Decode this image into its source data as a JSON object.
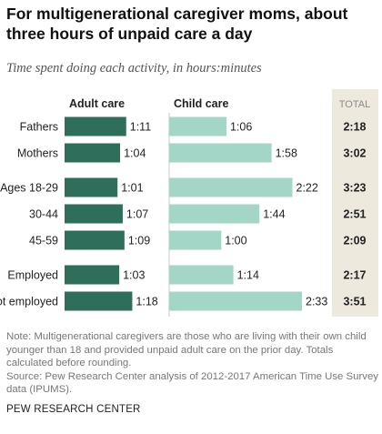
{
  "title": "For multigenerational caregiver moms, about three hours of unpaid care a day",
  "subtitle": "Time spent doing each activity, in hours:minutes",
  "note": "Note: Multigenerational caregivers are those who are living with their own child younger than 18 and provided unpaid adult care on the prior day. Totals calculated before rounding.",
  "source": "Source: Pew Research Center analysis of 2012-2017 American Time Use Survey data (IPUMS).",
  "brand": "PEW RESEARCH CENTER",
  "colors": {
    "adult_care": "#2e6e5b",
    "child_care": "#a4d6c8",
    "total_band": "#ede9dc",
    "total_label": "#8a8a8a"
  },
  "chart_data": {
    "type": "bar",
    "orientation": "horizontal",
    "categories": [
      "Fathers",
      "Mothers",
      "Ages 18-29",
      "30-44",
      "45-59",
      "Employed",
      "Not employed"
    ],
    "groups": [
      [
        0,
        1
      ],
      [
        2,
        3,
        4
      ],
      [
        5,
        6
      ]
    ],
    "units": "minutes",
    "series": [
      {
        "name": "Adult care",
        "values": [
          71,
          64,
          61,
          67,
          69,
          63,
          78
        ],
        "labels": [
          "1:11",
          "1:04",
          "1:01",
          "1:07",
          "1:09",
          "1:03",
          "1:18"
        ]
      },
      {
        "name": "Child care",
        "values": [
          66,
          118,
          142,
          104,
          60,
          74,
          153
        ],
        "labels": [
          "1:06",
          "1:58",
          "2:22",
          "1:44",
          "1:00",
          "1:14",
          "2:33"
        ]
      }
    ],
    "total": {
      "header": "TOTAL",
      "labels": [
        "2:18",
        "3:02",
        "3:23",
        "2:51",
        "2:09",
        "2:17",
        "3:51"
      ]
    }
  }
}
